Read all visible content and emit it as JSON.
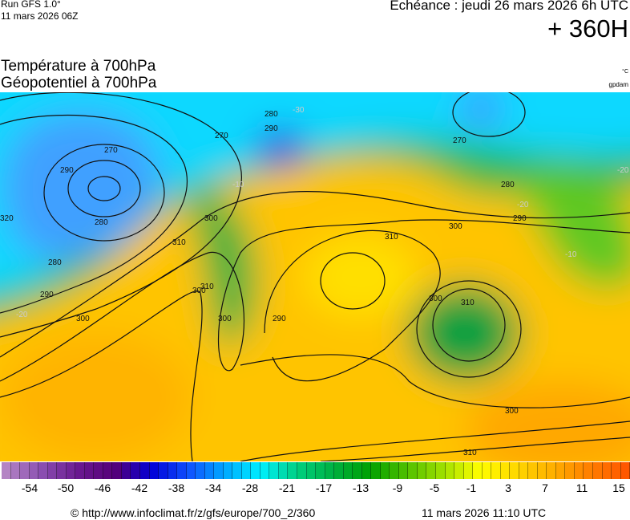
{
  "header": {
    "run_line1": "Run GFS 1.0°",
    "run_line2": "11 mars 2026 06Z",
    "echeance": "Echéance : jeudi 26 mars 2026 6h UTC",
    "lead_time": "+ 360H",
    "title_temp": "Température à 700hPa",
    "title_geo": "Géopotentiel à 700hPa",
    "unit_temp": "°C",
    "unit_geo": "gpdam"
  },
  "map": {
    "contour_labels": [
      "270",
      "280",
      "290",
      "300",
      "310",
      "300",
      "300",
      "290",
      "270",
      "280",
      "290",
      "300",
      "310",
      "300",
      "310",
      "300",
      "310",
      "290",
      "280",
      "270",
      "280",
      "290",
      "300",
      "310",
      "320"
    ],
    "isotherm_labels": [
      "-30",
      "-20",
      "-10",
      "-20",
      "-10",
      "-20"
    ]
  },
  "colorbar": {
    "stops": [
      "#b484c4",
      "#8a4eb0",
      "#6a1890",
      "#560078",
      "#0000d8",
      "#1050ff",
      "#00a8ff",
      "#00f0ff",
      "#00d080",
      "#00b040",
      "#00a000",
      "#50c000",
      "#a0e000",
      "#ffff00",
      "#ffd800",
      "#ffb000",
      "#ff8000",
      "#ff5800"
    ],
    "cells": 68,
    "tick_labels": [
      "-54",
      "-50",
      "-46",
      "-42",
      "-38",
      "-34",
      "-28",
      "-21",
      "-17",
      "-13",
      "-9",
      "-5",
      "-1",
      "3",
      "7",
      "11",
      "15"
    ]
  },
  "footer": {
    "url": "© http://www.infoclimat.fr/z/gfs/europe/700_2/360",
    "timestamp": "11 mars 2026 11:10 UTC"
  }
}
